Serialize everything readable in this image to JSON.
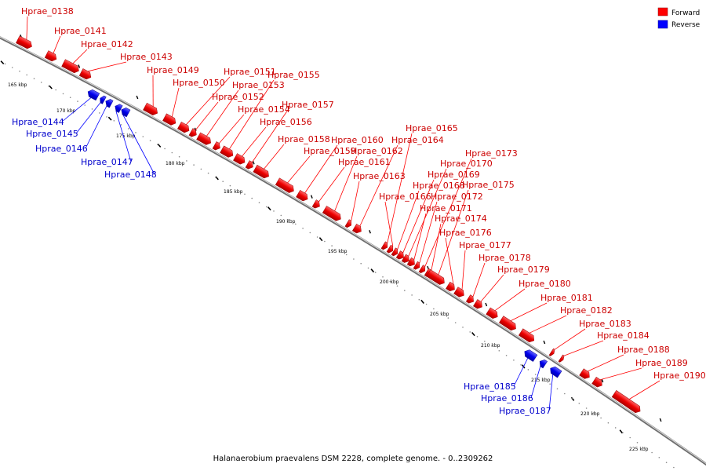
{
  "caption": "Halanaerobium praevalens DSM 2228, complete genome. - 0..2309262",
  "legend": [
    {
      "label": "Forward",
      "color": "#ff0000"
    },
    {
      "label": "Reverse",
      "color": "#0000ff"
    }
  ],
  "colors": {
    "forward": "#ff0000",
    "reverse": "#0000ff",
    "forward_label": "#cc0000",
    "reverse_label": "#0000cc"
  },
  "ticks": [
    {
      "label": "165 kbp",
      "kbp": 165
    },
    {
      "label": "170 kbp",
      "kbp": 170
    },
    {
      "label": "175 kbp",
      "kbp": 175
    },
    {
      "label": "180 kbp",
      "kbp": 180
    },
    {
      "label": "185 kbp",
      "kbp": 185
    },
    {
      "label": "190 kbp",
      "kbp": 190
    },
    {
      "label": "195 kbp",
      "kbp": 195
    },
    {
      "label": "200 kbp",
      "kbp": 200
    },
    {
      "label": "205 kbp",
      "kbp": 205
    },
    {
      "label": "210 kbp",
      "kbp": 210
    },
    {
      "label": "215 kbp",
      "kbp": 215
    },
    {
      "label": "220 kbp",
      "kbp": 220
    },
    {
      "label": "225 kbp",
      "kbp": 225
    }
  ],
  "genes": [
    {
      "name": "Hprae_0138",
      "strand": "forward"
    },
    {
      "name": "Hprae_0141",
      "strand": "forward"
    },
    {
      "name": "Hprae_0142",
      "strand": "forward"
    },
    {
      "name": "Hprae_0143",
      "strand": "forward"
    },
    {
      "name": "Hprae_0144",
      "strand": "reverse"
    },
    {
      "name": "Hprae_0145",
      "strand": "reverse"
    },
    {
      "name": "Hprae_0146",
      "strand": "reverse"
    },
    {
      "name": "Hprae_0147",
      "strand": "reverse"
    },
    {
      "name": "Hprae_0148",
      "strand": "reverse"
    },
    {
      "name": "Hprae_0149",
      "strand": "forward"
    },
    {
      "name": "Hprae_0150",
      "strand": "forward"
    },
    {
      "name": "Hprae_0151",
      "strand": "forward"
    },
    {
      "name": "Hprae_0152",
      "strand": "forward"
    },
    {
      "name": "Hprae_0153",
      "strand": "forward"
    },
    {
      "name": "Hprae_0154",
      "strand": "forward"
    },
    {
      "name": "Hprae_0155",
      "strand": "forward"
    },
    {
      "name": "Hprae_0156",
      "strand": "forward"
    },
    {
      "name": "Hprae_0157",
      "strand": "forward"
    },
    {
      "name": "Hprae_0158",
      "strand": "forward"
    },
    {
      "name": "Hprae_0159",
      "strand": "forward"
    },
    {
      "name": "Hprae_0160",
      "strand": "forward"
    },
    {
      "name": "Hprae_0161",
      "strand": "forward"
    },
    {
      "name": "Hprae_0162",
      "strand": "forward"
    },
    {
      "name": "Hprae_0163",
      "strand": "forward"
    },
    {
      "name": "Hprae_0164",
      "strand": "forward"
    },
    {
      "name": "Hprae_0165",
      "strand": "forward"
    },
    {
      "name": "Hprae_0166",
      "strand": "forward"
    },
    {
      "name": "Hprae_0168",
      "strand": "forward"
    },
    {
      "name": "Hprae_0169",
      "strand": "forward"
    },
    {
      "name": "Hprae_0170",
      "strand": "forward"
    },
    {
      "name": "Hprae_0171",
      "strand": "forward"
    },
    {
      "name": "Hprae_0172",
      "strand": "forward"
    },
    {
      "name": "Hprae_0173",
      "strand": "forward"
    },
    {
      "name": "Hprae_0174",
      "strand": "forward"
    },
    {
      "name": "Hprae_0175",
      "strand": "forward"
    },
    {
      "name": "Hprae_0176",
      "strand": "forward"
    },
    {
      "name": "Hprae_0177",
      "strand": "forward"
    },
    {
      "name": "Hprae_0178",
      "strand": "forward"
    },
    {
      "name": "Hprae_0179",
      "strand": "forward"
    },
    {
      "name": "Hprae_0180",
      "strand": "forward"
    },
    {
      "name": "Hprae_0181",
      "strand": "forward"
    },
    {
      "name": "Hprae_0182",
      "strand": "forward"
    },
    {
      "name": "Hprae_0183",
      "strand": "forward"
    },
    {
      "name": "Hprae_0184",
      "strand": "forward"
    },
    {
      "name": "Hprae_0185",
      "strand": "reverse"
    },
    {
      "name": "Hprae_0186",
      "strand": "reverse"
    },
    {
      "name": "Hprae_0187",
      "strand": "reverse"
    },
    {
      "name": "Hprae_0188",
      "strand": "forward"
    },
    {
      "name": "Hprae_0189",
      "strand": "forward"
    },
    {
      "name": "Hprae_0190",
      "strand": "forward"
    }
  ]
}
